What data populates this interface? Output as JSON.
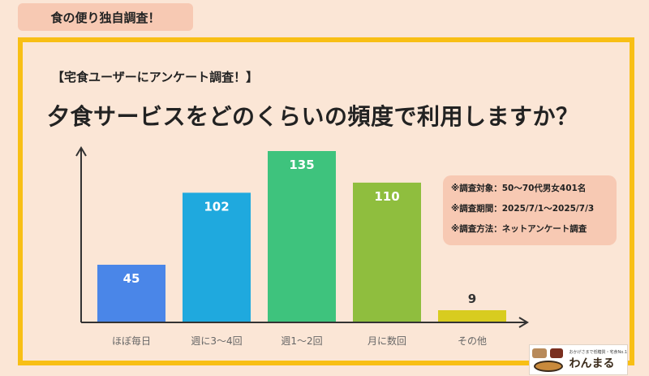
{
  "header": {
    "tab_label": "食の便り独自調査！"
  },
  "survey": {
    "tag": "【宅食ユーザーにアンケート調査！】",
    "question": "夕食サービスをどのくらいの頻度で利用しますか？"
  },
  "info": {
    "target": "※調査対象：50～70代男女401名",
    "period": "※調査期間：2025/7/1～2025/7/3",
    "method": "※調査方法：ネットアンケート調査"
  },
  "logo": {
    "tagline": "おかげさまで低糖質・宅食No.1",
    "brand": "わんまる"
  },
  "chart_data": {
    "type": "bar",
    "categories": [
      "ほぼ毎日",
      "週に3〜4回",
      "週1〜2回",
      "月に数回",
      "その他"
    ],
    "values": [
      45,
      102,
      135,
      110,
      9
    ],
    "colors": [
      "#4a86e8",
      "#1fa9de",
      "#3ec37d",
      "#8fbe3e",
      "#d8cc1f"
    ],
    "value_label_colors": [
      "#ffffff",
      "#ffffff",
      "#ffffff",
      "#ffffff",
      "#333333"
    ],
    "ylim": [
      0,
      135
    ]
  }
}
